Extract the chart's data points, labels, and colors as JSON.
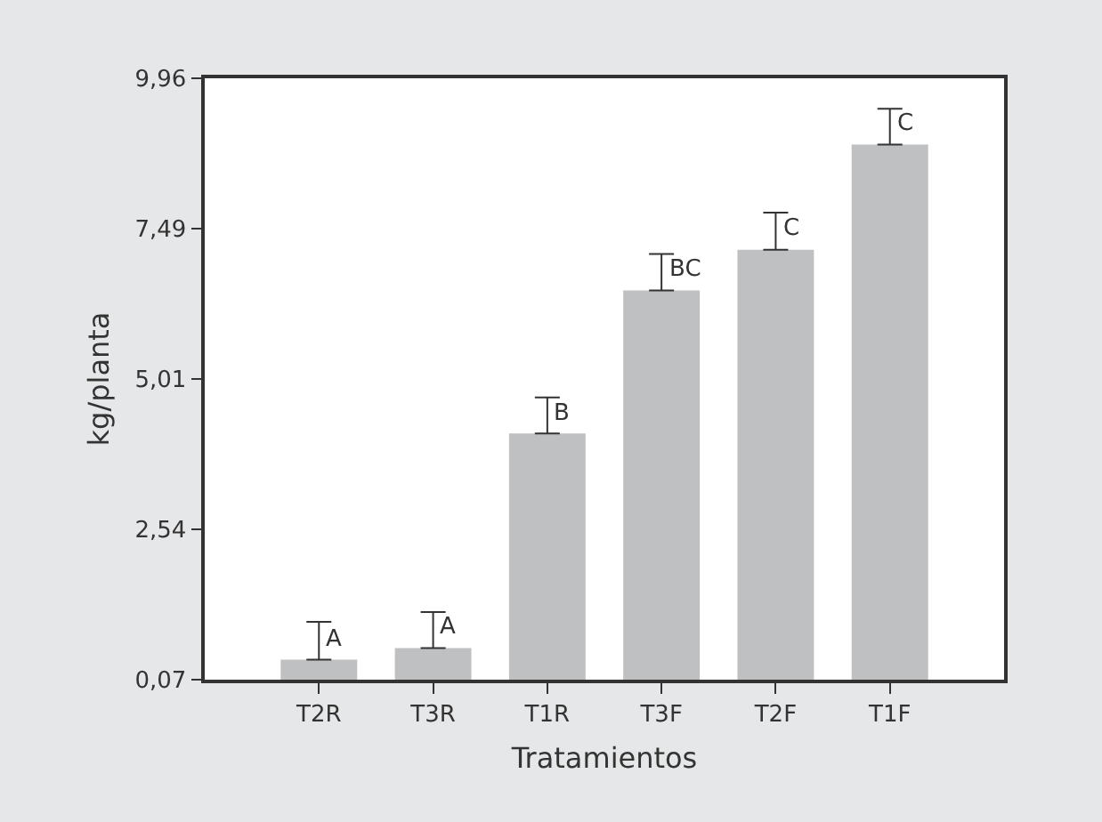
{
  "chart_data": {
    "type": "bar",
    "xlabel": "Tratamientos",
    "ylabel": "kg/planta",
    "categories": [
      "T2R",
      "T3R",
      "T1R",
      "T3F",
      "T2F",
      "T1F"
    ],
    "values": [
      0.4,
      0.59,
      4.12,
      6.47,
      7.14,
      8.87
    ],
    "errors": [
      [
        0.4,
        1.02
      ],
      [
        0.59,
        1.18
      ],
      [
        4.12,
        4.71
      ],
      [
        6.47,
        7.07
      ],
      [
        7.14,
        7.75
      ],
      [
        8.87,
        9.46
      ]
    ],
    "color": "#bfc0c2",
    "ylim": [
      0.07,
      9.96
    ],
    "yticks": [
      {
        "value": 0.07,
        "label": "0,07"
      },
      {
        "value": 2.54,
        "label": "2,54"
      },
      {
        "value": 5.01,
        "label": "5,01"
      },
      {
        "value": 7.49,
        "label": "7,49"
      },
      {
        "value": 9.96,
        "label": "9,96"
      }
    ],
    "annotations": [
      {
        "text": "A",
        "x": "T2R",
        "y": 0.4
      },
      {
        "text": "A",
        "x": "T3R",
        "y": 0.59
      },
      {
        "text": "B",
        "x": "T1R",
        "y": 4.12
      },
      {
        "text": "BC",
        "x": "T3F",
        "y": 6.47
      },
      {
        "text": "C",
        "x": "T2F",
        "y": 7.14
      },
      {
        "text": "C",
        "x": "T1F",
        "y": 8.87
      }
    ],
    "legend": false
  }
}
